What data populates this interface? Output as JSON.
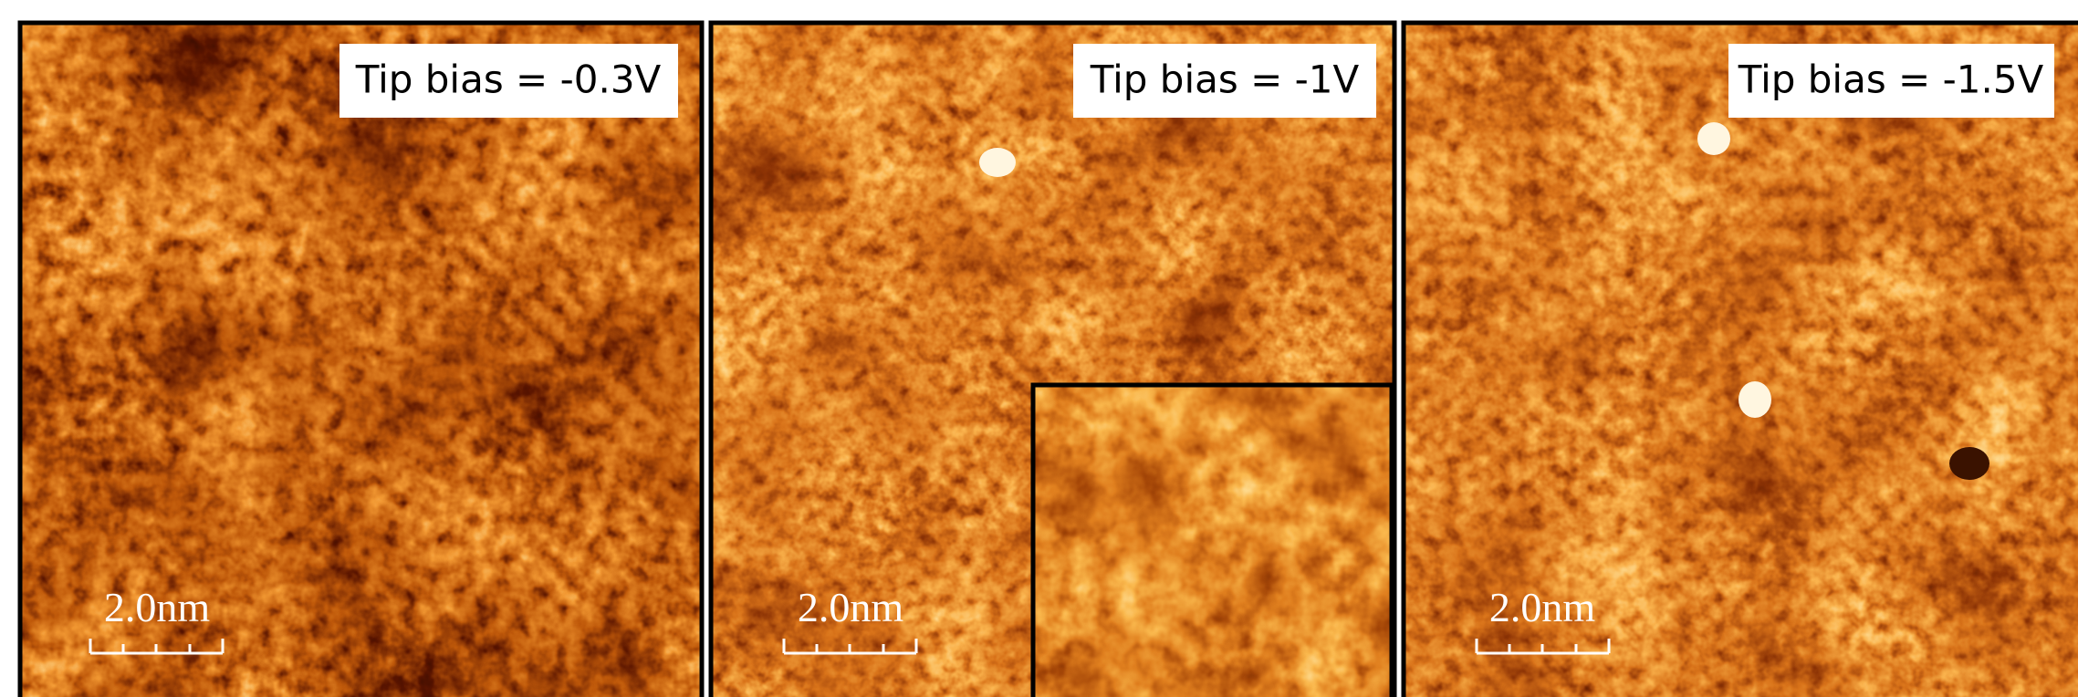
{
  "panels": [
    {
      "label": "Tip bias = -0.3V",
      "scale_bar": "2.0nm"
    },
    {
      "label": "Tip bias = -1V",
      "scale_bar": "2.0nm"
    },
    {
      "label": "Tip bias = -1.5V",
      "scale_bar": "2.0nm"
    }
  ]
}
